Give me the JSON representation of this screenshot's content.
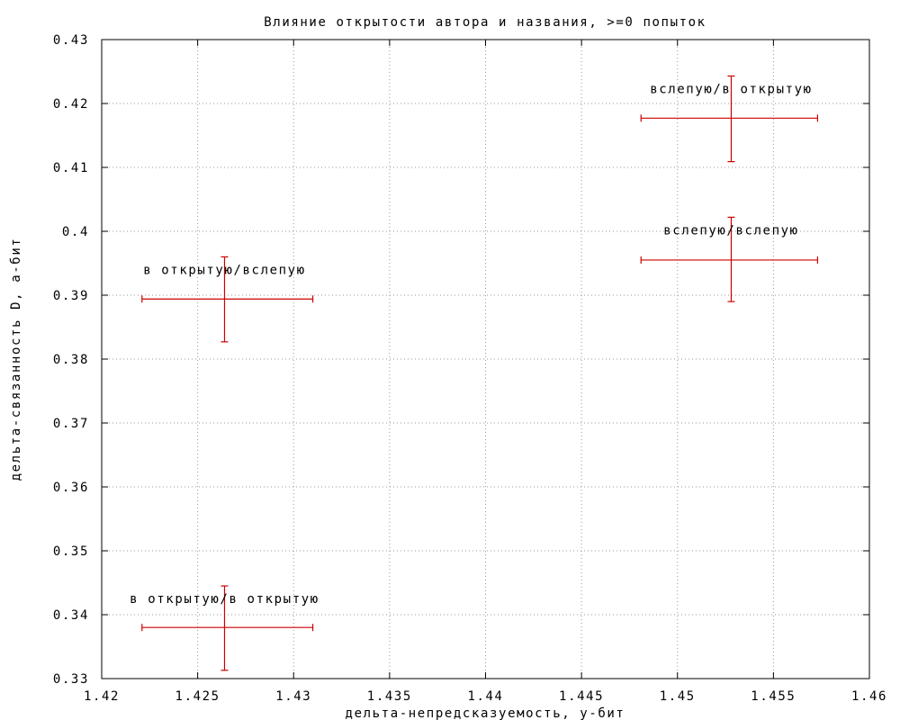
{
  "chart_data": {
    "type": "scatter",
    "title": "Влияние открытости автора и названия, >=0 попыток",
    "xlabel": "дельта-непредсказуемость, у-бит",
    "ylabel": "дельта-связанность D, а-бит",
    "xlim": [
      1.42,
      1.46
    ],
    "ylim": [
      0.33,
      0.43
    ],
    "x_ticks": [
      "1.42",
      "1.425",
      "1.43",
      "1.435",
      "1.44",
      "1.445",
      "1.45",
      "1.455",
      "1.46"
    ],
    "x_tick_values": [
      1.42,
      1.425,
      1.43,
      1.435,
      1.44,
      1.445,
      1.45,
      1.455,
      1.46
    ],
    "y_ticks": [
      "0.33",
      "0.34",
      "0.35",
      "0.36",
      "0.37",
      "0.38",
      "0.39",
      "0.4",
      "0.41",
      "0.42",
      "0.43"
    ],
    "y_tick_values": [
      0.33,
      0.34,
      0.35,
      0.36,
      0.37,
      0.38,
      0.39,
      0.4,
      0.41,
      0.42,
      0.43
    ],
    "grid": true,
    "points": [
      {
        "label": "вслепую/в открытую",
        "x": 1.4528,
        "y": 0.4177,
        "xerr": [
          1.4481,
          1.4573
        ],
        "yerr": [
          0.4109,
          0.4243
        ]
      },
      {
        "label": "вслепую/вслепую",
        "x": 1.4528,
        "y": 0.3955,
        "xerr": [
          1.4481,
          1.4573
        ],
        "yerr": [
          0.389,
          0.4022
        ]
      },
      {
        "label": "в открытую/вслепую",
        "x": 1.4264,
        "y": 0.3894,
        "xerr": [
          1.4221,
          1.431
        ],
        "yerr": [
          0.3827,
          0.396
        ]
      },
      {
        "label": "в открытую/в открытую",
        "x": 1.4264,
        "y": 0.338,
        "xerr": [
          1.4221,
          1.431
        ],
        "yerr": [
          0.3313,
          0.3445
        ]
      }
    ],
    "color": "#cc0000"
  }
}
